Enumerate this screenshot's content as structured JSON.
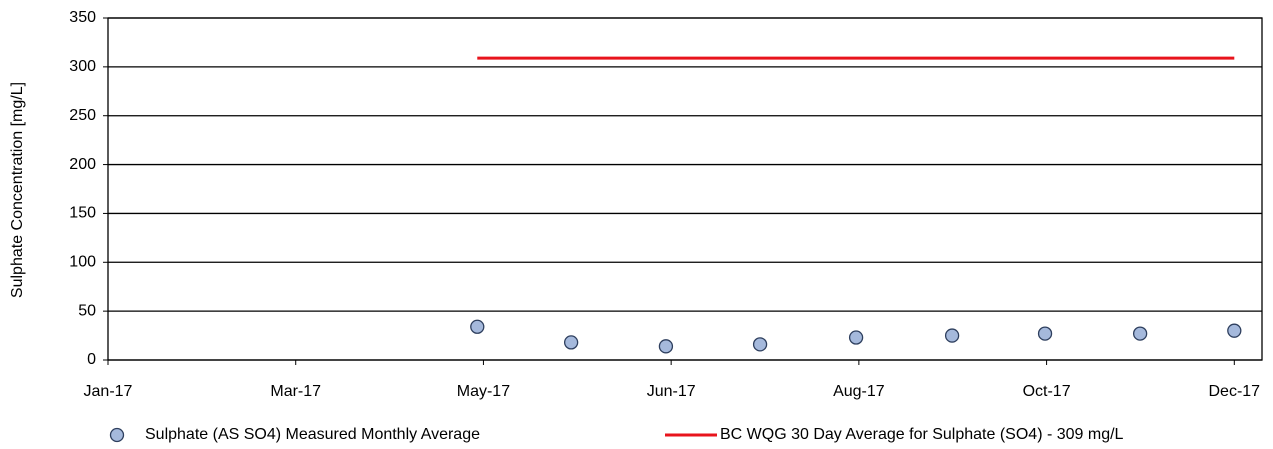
{
  "chart_data": {
    "type": "scatter",
    "y_label": "Sulphate Concentration [mg/L]",
    "xlim": [
      0,
      375
    ],
    "xticks": [
      {
        "value": 0,
        "label": "Jan-17"
      },
      {
        "value": 61,
        "label": "Mar-17"
      },
      {
        "value": 122,
        "label": "May-17"
      },
      {
        "value": 183,
        "label": "Jun-17"
      },
      {
        "value": 244,
        "label": "Aug-17"
      },
      {
        "value": 305,
        "label": "Oct-17"
      },
      {
        "value": 366,
        "label": "Dec-17"
      }
    ],
    "ylim": [
      0,
      350
    ],
    "yticks": [
      0,
      50,
      100,
      150,
      200,
      250,
      300,
      350
    ],
    "grid": true,
    "legend": "bottom",
    "series": [
      {
        "name": "Sulphate (AS SO4) Measured Monthly Average",
        "type": "scatter",
        "color": "#a5b9dc",
        "x": [
          120,
          150.5,
          181.3,
          211.9,
          243.1,
          274.3,
          304.5,
          335.4,
          366
        ],
        "values": [
          34,
          18,
          14,
          16,
          23,
          25,
          27,
          27,
          30
        ]
      },
      {
        "name": "BC WQG 30 Day Average for Sulphate (SO4) - 309 mg/L",
        "type": "line",
        "color": "#e8141c",
        "x": [
          120,
          366
        ],
        "values": [
          309,
          309
        ]
      }
    ]
  }
}
